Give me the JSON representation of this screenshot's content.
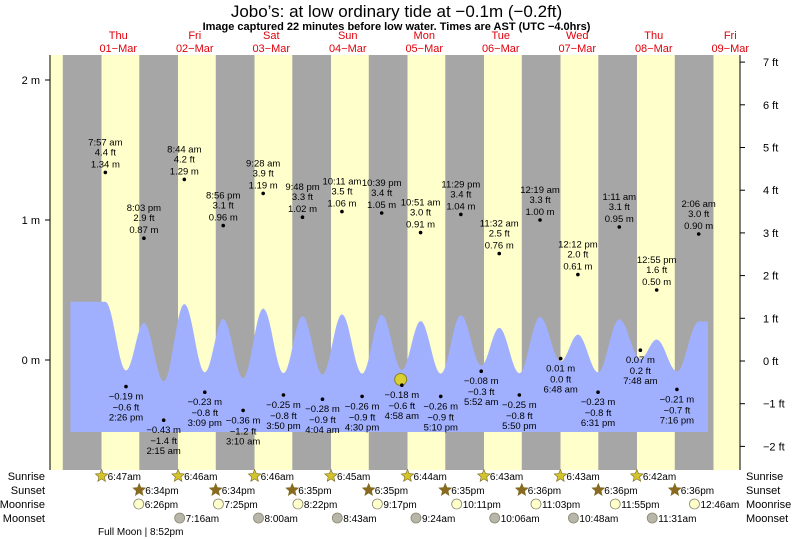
{
  "title": "Jobo’s: at low  ordinary tide at −0.1m (−0.2ft)",
  "subtitle": "Image captured 22 minutes before low water. Times are AST (UTC −4.0hrs)",
  "chart_data": {
    "type": "line",
    "title": "Jobo’s: at low  ordinary tide at −0.1m (−0.2ft)",
    "x_unit": "hours since 01-Mar 00:00",
    "xlim": [
      -9.4,
      207
    ],
    "left_axis": {
      "unit": "m",
      "ticks": [
        {
          "v": 2,
          "label": "2 m"
        },
        {
          "v": 1,
          "label": "1 m"
        },
        {
          "v": 0,
          "label": "0 m"
        }
      ]
    },
    "right_axis": {
      "unit": "ft",
      "ticks": [
        {
          "v": 7,
          "label": "7 ft"
        },
        {
          "v": 6,
          "label": "6 ft"
        },
        {
          "v": 5,
          "label": "5 ft"
        },
        {
          "v": 4,
          "label": "4 ft"
        },
        {
          "v": 3,
          "label": "3 ft"
        },
        {
          "v": 2,
          "label": "2 ft"
        },
        {
          "v": 1,
          "label": "1 ft"
        },
        {
          "v": 0,
          "label": "0 ft"
        },
        {
          "v": -1,
          "label": "−1 ft"
        },
        {
          "v": -2,
          "label": "−2 ft"
        }
      ]
    },
    "days": [
      {
        "dow": "Thu",
        "date": "01−Mar"
      },
      {
        "dow": "Fri",
        "date": "02−Mar"
      },
      {
        "dow": "Sat",
        "date": "03−Mar"
      },
      {
        "dow": "Sun",
        "date": "04−Mar"
      },
      {
        "dow": "Mon",
        "date": "05−Mar"
      },
      {
        "dow": "Tue",
        "date": "06−Mar"
      },
      {
        "dow": "Wed",
        "date": "07−Mar"
      },
      {
        "dow": "Thu",
        "date": "08−Mar"
      },
      {
        "dow": "Fri",
        "date": "09−Mar"
      }
    ],
    "current_marker": {
      "t": 100.6,
      "m": -0.1
    },
    "tides": [
      {
        "type": "high",
        "t": 7.95,
        "m": 1.34,
        "time": "7:57 am",
        "ft": "4.4 ft",
        "mlabel": "1.34 m"
      },
      {
        "type": "low",
        "t": 14.43,
        "m": -0.19,
        "time": "2:26 pm",
        "ft": "−0.6 ft",
        "mlabel": "−0.19 m"
      },
      {
        "type": "high",
        "t": 20.05,
        "m": 0.87,
        "time": "8:03 pm",
        "ft": "2.9 ft",
        "mlabel": "0.87 m"
      },
      {
        "type": "low",
        "t": 26.25,
        "m": -0.43,
        "time": "2:15 am",
        "ft": "−1.4 ft",
        "mlabel": "−0.43 m"
      },
      {
        "type": "high",
        "t": 32.73,
        "m": 1.29,
        "time": "8:44 am",
        "ft": "4.2 ft",
        "mlabel": "1.29 m"
      },
      {
        "type": "low",
        "t": 39.15,
        "m": -0.23,
        "time": "3:09 pm",
        "ft": "−0.8 ft",
        "mlabel": "−0.23 m"
      },
      {
        "type": "high",
        "t": 44.93,
        "m": 0.96,
        "time": "8:56 pm",
        "ft": "3.1 ft",
        "mlabel": "0.96 m"
      },
      {
        "type": "low",
        "t": 51.17,
        "m": -0.36,
        "time": "3:10 am",
        "ft": "−1.2 ft",
        "mlabel": "−0.36 m"
      },
      {
        "type": "high",
        "t": 57.47,
        "m": 1.19,
        "time": "9:28 am",
        "ft": "3.9 ft",
        "mlabel": "1.19 m"
      },
      {
        "type": "low",
        "t": 63.83,
        "m": -0.25,
        "time": "3:50 pm",
        "ft": "−0.8 ft",
        "mlabel": "−0.25 m"
      },
      {
        "type": "high",
        "t": 69.8,
        "m": 1.02,
        "time": "9:48 pm",
        "ft": "3.3 ft",
        "mlabel": "1.02 m"
      },
      {
        "type": "low",
        "t": 76.07,
        "m": -0.28,
        "time": "4:04 am",
        "ft": "−0.9 ft",
        "mlabel": "−0.28 m"
      },
      {
        "type": "high",
        "t": 82.18,
        "m": 1.06,
        "time": "10:11 am",
        "ft": "3.5 ft",
        "mlabel": "1.06 m"
      },
      {
        "type": "low",
        "t": 88.5,
        "m": -0.26,
        "time": "4:30 pm",
        "ft": "−0.9 ft",
        "mlabel": "−0.26 m"
      },
      {
        "type": "high",
        "t": 94.65,
        "m": 1.05,
        "time": "10:39 pm",
        "ft": "3.4 ft",
        "mlabel": "1.05 m"
      },
      {
        "type": "low",
        "t": 100.97,
        "m": -0.18,
        "time": "4:58 am",
        "ft": "−0.6 ft",
        "mlabel": "−0.18 m"
      },
      {
        "type": "high",
        "t": 106.85,
        "m": 0.91,
        "time": "10:51 am",
        "ft": "3.0 ft",
        "mlabel": "0.91 m"
      },
      {
        "type": "low",
        "t": 113.17,
        "m": -0.26,
        "time": "5:10 pm",
        "ft": "−0.9 ft",
        "mlabel": "−0.26 m"
      },
      {
        "type": "high",
        "t": 119.48,
        "m": 1.04,
        "time": "11:29 pm",
        "ft": "3.4 ft",
        "mlabel": "1.04 m"
      },
      {
        "type": "low",
        "t": 125.87,
        "m": -0.08,
        "time": "5:52 am",
        "ft": "−0.3 ft",
        "mlabel": "−0.08 m"
      },
      {
        "type": "high",
        "t": 131.53,
        "m": 0.76,
        "time": "11:32 am",
        "ft": "2.5 ft",
        "mlabel": "0.76 m"
      },
      {
        "type": "low",
        "t": 137.83,
        "m": -0.25,
        "time": "5:50 pm",
        "ft": "−0.8 ft",
        "mlabel": "−0.25 m"
      },
      {
        "type": "high",
        "t": 144.32,
        "m": 1.0,
        "time": "12:19 am",
        "ft": "3.3 ft",
        "mlabel": "1.00 m"
      },
      {
        "type": "low",
        "t": 150.8,
        "m": 0.01,
        "time": "6:48 am",
        "ft": "0.0 ft",
        "mlabel": "0.01 m"
      },
      {
        "type": "high",
        "t": 156.2,
        "m": 0.61,
        "time": "12:12 pm",
        "ft": "2.0 ft",
        "mlabel": "0.61 m"
      },
      {
        "type": "low",
        "t": 162.52,
        "m": -0.23,
        "time": "6:31 pm",
        "ft": "−0.8 ft",
        "mlabel": "−0.23 m"
      },
      {
        "type": "high",
        "t": 169.18,
        "m": 0.95,
        "time": "1:11 am",
        "ft": "3.1 ft",
        "mlabel": "0.95 m"
      },
      {
        "type": "low",
        "t": 175.8,
        "m": 0.07,
        "time": "7:48 am",
        "ft": "0.2 ft",
        "mlabel": "0.07 m"
      },
      {
        "type": "high",
        "t": 180.92,
        "m": 0.5,
        "time": "12:55 pm",
        "ft": "1.6 ft",
        "mlabel": "0.50 m"
      },
      {
        "type": "low",
        "t": 187.27,
        "m": -0.21,
        "time": "7:16 pm",
        "ft": "−0.7 ft",
        "mlabel": "−0.21 m"
      },
      {
        "type": "high",
        "t": 194.1,
        "m": 0.9,
        "time": "2:06 am",
        "ft": "3.0 ft",
        "mlabel": "0.90 m"
      }
    ]
  },
  "almanac": {
    "labels": {
      "sunrise": "Sunrise",
      "sunset": "Sunset",
      "moonrise": "Moonrise",
      "moonset": "Moonset"
    },
    "sunrise": [
      {
        "t": 6.78,
        "label": "6:47am"
      },
      {
        "t": 30.77,
        "label": "6:46am"
      },
      {
        "t": 54.77,
        "label": "6:46am"
      },
      {
        "t": 78.75,
        "label": "6:45am"
      },
      {
        "t": 102.73,
        "label": "6:44am"
      },
      {
        "t": 126.72,
        "label": "6:43am"
      },
      {
        "t": 150.72,
        "label": "6:43am"
      },
      {
        "t": 174.7,
        "label": "6:42am"
      }
    ],
    "sunset": [
      {
        "t": 18.57,
        "label": "6:34pm"
      },
      {
        "t": 42.57,
        "label": "6:34pm"
      },
      {
        "t": 66.58,
        "label": "6:35pm"
      },
      {
        "t": 90.58,
        "label": "6:35pm"
      },
      {
        "t": 114.58,
        "label": "6:35pm"
      },
      {
        "t": 138.6,
        "label": "6:36pm"
      },
      {
        "t": 162.6,
        "label": "6:36pm"
      },
      {
        "t": 186.6,
        "label": "6:36pm"
      }
    ],
    "moonrise": [
      {
        "t": 18.43,
        "label": "6:26pm"
      },
      {
        "t": 43.42,
        "label": "7:25pm"
      },
      {
        "t": 68.37,
        "label": "8:22pm"
      },
      {
        "t": 93.28,
        "label": "9:17pm"
      },
      {
        "t": 118.18,
        "label": "10:11pm"
      },
      {
        "t": 143.05,
        "label": "11:03pm"
      },
      {
        "t": 167.92,
        "label": "11:55pm"
      },
      {
        "t": 192.77,
        "label": "12:46am"
      }
    ],
    "moonset": [
      {
        "t": 31.27,
        "label": "7:16am"
      },
      {
        "t": 56.0,
        "label": "8:00am"
      },
      {
        "t": 80.72,
        "label": "8:43am"
      },
      {
        "t": 105.4,
        "label": "9:24am"
      },
      {
        "t": 130.1,
        "label": "10:06am"
      },
      {
        "t": 154.8,
        "label": "10:48am"
      },
      {
        "t": 179.52,
        "label": "11:31am"
      }
    ],
    "moon_phase": {
      "label": "Full Moon",
      "time": "8:52pm"
    }
  },
  "colors": {
    "day": "#ffffcc",
    "night": "#a6a6a6",
    "water": "#a0b0ff",
    "title_day": "#e0000a",
    "sun_rise": "#d4c42c",
    "sun_set": "#8b6a20",
    "moonrise": "#ffffcc",
    "moonset": "#b8b6a8",
    "marker": "#d8d030"
  }
}
